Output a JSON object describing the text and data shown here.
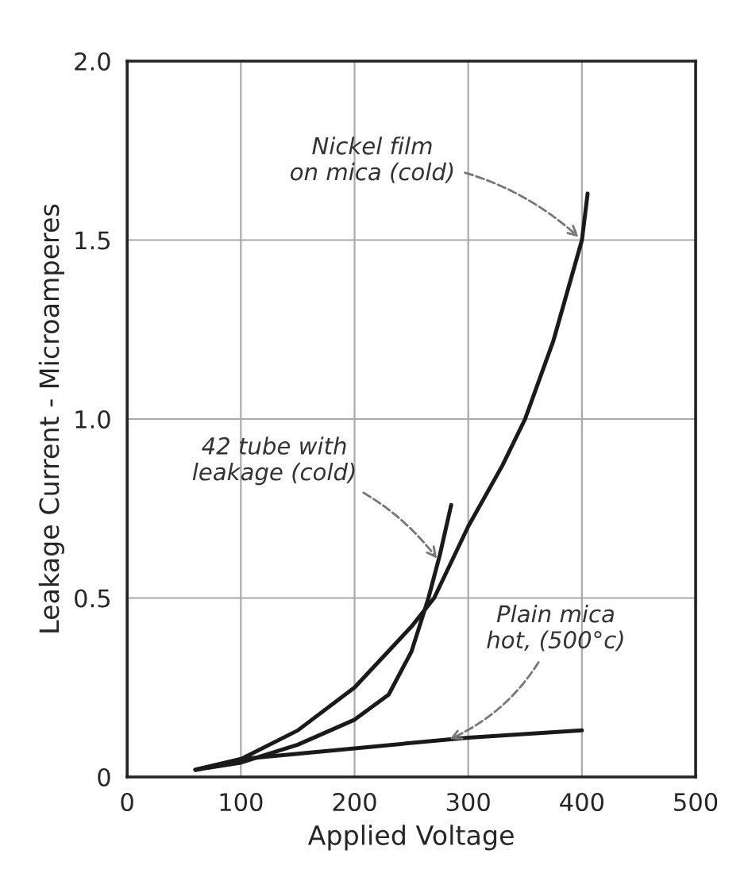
{
  "chart_data": {
    "type": "line",
    "xlabel": "Applied Voltage",
    "ylabel": "Leakage Current - Microamperes",
    "xlim": [
      0,
      500
    ],
    "ylim": [
      0,
      2.0
    ],
    "xticks": [
      0,
      100,
      200,
      300,
      400,
      500
    ],
    "yticks": [
      {
        "value": 0,
        "label": "0"
      },
      {
        "value": 0.5,
        "label": "0.5"
      },
      {
        "value": 1.0,
        "label": "1.0"
      },
      {
        "value": 1.5,
        "label": "1.5"
      },
      {
        "value": 2.0,
        "label": "2.0"
      }
    ],
    "grid": true,
    "marker": "none",
    "line_style": "solid",
    "series": [
      {
        "color": "#1a1a1a",
        "x": [
          60,
          100,
          150,
          200,
          250,
          270,
          300,
          330,
          350,
          375,
          400,
          405
        ],
        "values": [
          0.02,
          0.05,
          0.13,
          0.25,
          0.42,
          0.5,
          0.7,
          0.87,
          1.0,
          1.22,
          1.5,
          1.63
        ]
      },
      {
        "color": "#1a1a1a",
        "x": [
          60,
          100,
          150,
          200,
          230,
          250,
          265,
          275,
          285
        ],
        "values": [
          0.02,
          0.04,
          0.09,
          0.16,
          0.23,
          0.35,
          0.5,
          0.62,
          0.76
        ]
      },
      {
        "color": "#1a1a1a",
        "x": [
          60,
          100,
          200,
          300,
          400
        ],
        "values": [
          0.02,
          0.05,
          0.08,
          0.11,
          0.13
        ]
      }
    ],
    "annotations": [
      {
        "text": "Nickel film\non mica (cold)",
        "x": 400,
        "y": 1.5
      },
      {
        "text": "42 tube with\nleakage (cold)",
        "x": 275,
        "y": 0.6
      },
      {
        "text": "Plain mica\nhot, (500°c)",
        "x": 280,
        "y": 0.1
      }
    ]
  }
}
